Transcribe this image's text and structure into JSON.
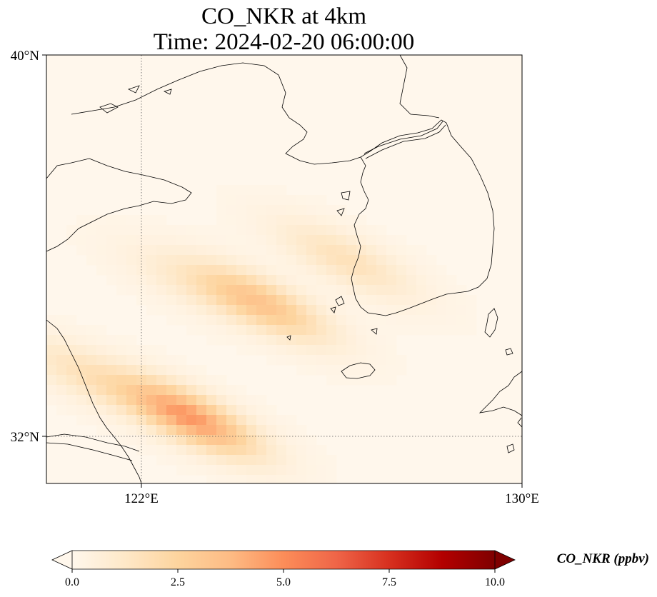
{
  "title": {
    "line1": "CO_NKR at 4km",
    "line2": "Time: 2024-02-20 06:00:00"
  },
  "map": {
    "lat_range": [
      31.0,
      40.0
    ],
    "lon_range": [
      120.0,
      130.0
    ],
    "gridlines": "dotted",
    "lat_ticks": [
      {
        "value": 40,
        "label": "40°N"
      },
      {
        "value": 32,
        "label": "32°N"
      }
    ],
    "lon_ticks": [
      {
        "value": 122,
        "label": "122°E"
      },
      {
        "value": 130,
        "label": "130°E"
      }
    ]
  },
  "chart_data": {
    "type": "heatmap",
    "variable": "CO_NKR",
    "units": "ppbv",
    "colormap": "OrRd",
    "range": [
      0.0,
      10.0
    ],
    "extend": "both",
    "plumes": [
      {
        "lon": 123.0,
        "lat": 32.4,
        "peak": 4.5
      },
      {
        "lon": 124.5,
        "lat": 34.8,
        "peak": 3.0
      },
      {
        "lon": 126.3,
        "lat": 35.7,
        "peak": 1.5
      },
      {
        "lon": 120.8,
        "lat": 33.3,
        "peak": 1.3
      },
      {
        "lon": 123.0,
        "lat": 35.2,
        "peak": 0.7
      }
    ],
    "background": 0.15
  },
  "colorbar": {
    "label": "CO_NKR (ppbv)",
    "ticks": [
      "0.0",
      "2.5",
      "5.0",
      "7.5",
      "10.0"
    ],
    "tick_values": [
      0.0,
      2.5,
      5.0,
      7.5,
      10.0
    ],
    "colors": [
      "#fff7ec",
      "#fee8c8",
      "#fdd49e",
      "#fdbb84",
      "#fc8d59",
      "#ef6548",
      "#d7301f",
      "#b30000",
      "#7f0000"
    ]
  }
}
